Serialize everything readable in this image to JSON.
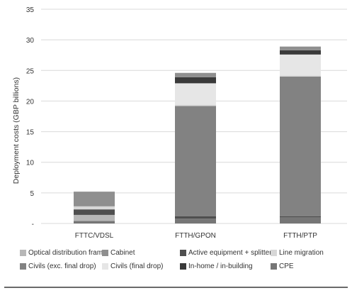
{
  "chart_data": {
    "type": "bar",
    "stacked": true,
    "title": "",
    "xlabel": "",
    "ylabel": "Deployment costs (GBP billions)",
    "ylim": [
      0,
      35
    ],
    "yticks": [
      0,
      5,
      10,
      15,
      20,
      25,
      30,
      35
    ],
    "ytick_labels": [
      "-",
      "5",
      "10",
      "15",
      "20",
      "25",
      "30",
      "35"
    ],
    "grid": "horizontal",
    "legend_position": "bottom",
    "categories": [
      "FTTC/VDSL",
      "FTTH/GPON",
      "FTTH/PTP"
    ],
    "series": [
      {
        "name": "CPE",
        "color": "#767676",
        "values": [
          0.4,
          0.8,
          1.0
        ]
      },
      {
        "name": "Optical distribution frame",
        "color": "#b7b7b7",
        "values": [
          1.0,
          0.0,
          0.0
        ]
      },
      {
        "name": "Active equipment + splitters",
        "color": "#4f4f4f",
        "values": [
          0.9,
          0.4,
          0.2
        ]
      },
      {
        "name": "Civils (exc. final drop)",
        "color": "#828282",
        "values": [
          0.0,
          18.0,
          22.8
        ]
      },
      {
        "name": "Line migration",
        "color": "#d7d7d7",
        "values": [
          0.5,
          0.2,
          0.2
        ]
      },
      {
        "name": "Civils (final drop)",
        "color": "#e6e6e6",
        "values": [
          0.0,
          3.5,
          3.4
        ]
      },
      {
        "name": "In-home / in-building",
        "color": "#3a3a3a",
        "values": [
          0.0,
          1.0,
          0.7
        ]
      },
      {
        "name": "Cabinet",
        "color": "#8f8f8f",
        "values": [
          2.4,
          0.7,
          0.6
        ]
      }
    ]
  },
  "legend": {
    "items": [
      {
        "label": "Optical distribution frame",
        "color": "#b7b7b7",
        "icon": "square-swatch"
      },
      {
        "label": "Cabinet",
        "color": "#8f8f8f",
        "icon": "square-swatch"
      },
      {
        "label": "Active equipment + splitters",
        "color": "#4f4f4f",
        "icon": "square-swatch"
      },
      {
        "label": "Line migration",
        "color": "#d7d7d7",
        "icon": "square-swatch"
      },
      {
        "label": "Civils (exc. final drop)",
        "color": "#828282",
        "icon": "square-swatch"
      },
      {
        "label": "Civils (final drop)",
        "color": "#e6e6e6",
        "icon": "square-swatch"
      },
      {
        "label": "In-home / in-building",
        "color": "#3a3a3a",
        "icon": "square-swatch"
      },
      {
        "label": "CPE",
        "color": "#767676",
        "icon": "square-swatch"
      }
    ]
  }
}
